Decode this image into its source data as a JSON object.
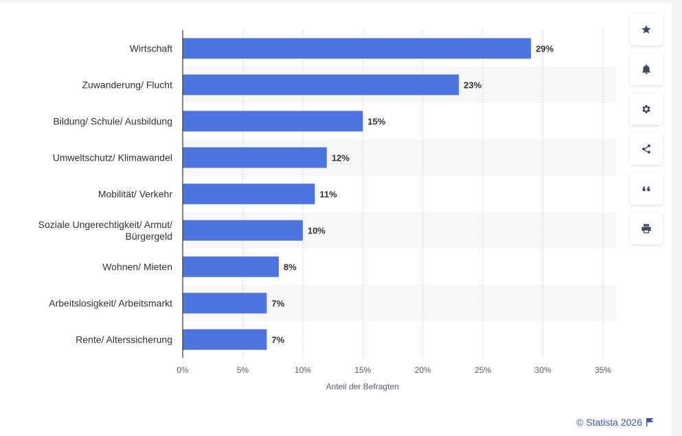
{
  "chart_data": {
    "type": "bar",
    "orientation": "horizontal",
    "categories": [
      "Wirtschaft",
      "Zuwanderung/ Flucht",
      "Bildung/ Schule/ Ausbildung",
      "Umweltschutz/ Klimawandel",
      "Mobilität/ Verkehr",
      "Soziale Ungerechtigkeit/ Armut/ Bürgergeld",
      "Wohnen/ Mieten",
      "Arbeitslosigkeit/ Arbeitsmarkt",
      "Rente/ Alterssicherung"
    ],
    "values": [
      29,
      23,
      15,
      12,
      11,
      10,
      8,
      7,
      7
    ],
    "value_labels": [
      "29%",
      "23%",
      "15%",
      "12%",
      "11%",
      "10%",
      "8%",
      "7%",
      "7%"
    ],
    "xlim": [
      0,
      35
    ],
    "xticks": [
      0,
      5,
      10,
      15,
      20,
      25,
      30,
      35
    ],
    "xtick_labels": [
      "0%",
      "5%",
      "10%",
      "15%",
      "20%",
      "25%",
      "30%",
      "35%"
    ],
    "xlabel": "Anteil der Befragten",
    "ylabel": "",
    "title": "",
    "grid": "vertical-dotted",
    "bar_color": "#4f74dd",
    "band_color": "#f7f7f8"
  },
  "toolbar": {
    "buttons": [
      {
        "name": "favorite-button",
        "icon": "star-icon"
      },
      {
        "name": "notification-button",
        "icon": "bell-icon"
      },
      {
        "name": "settings-button",
        "icon": "gear-icon"
      },
      {
        "name": "share-button",
        "icon": "share-icon"
      },
      {
        "name": "cite-button",
        "icon": "quote-icon"
      },
      {
        "name": "print-button",
        "icon": "printer-icon"
      }
    ]
  },
  "footer": {
    "credit": "© Statista 2026",
    "flag_icon": "flag-icon"
  }
}
